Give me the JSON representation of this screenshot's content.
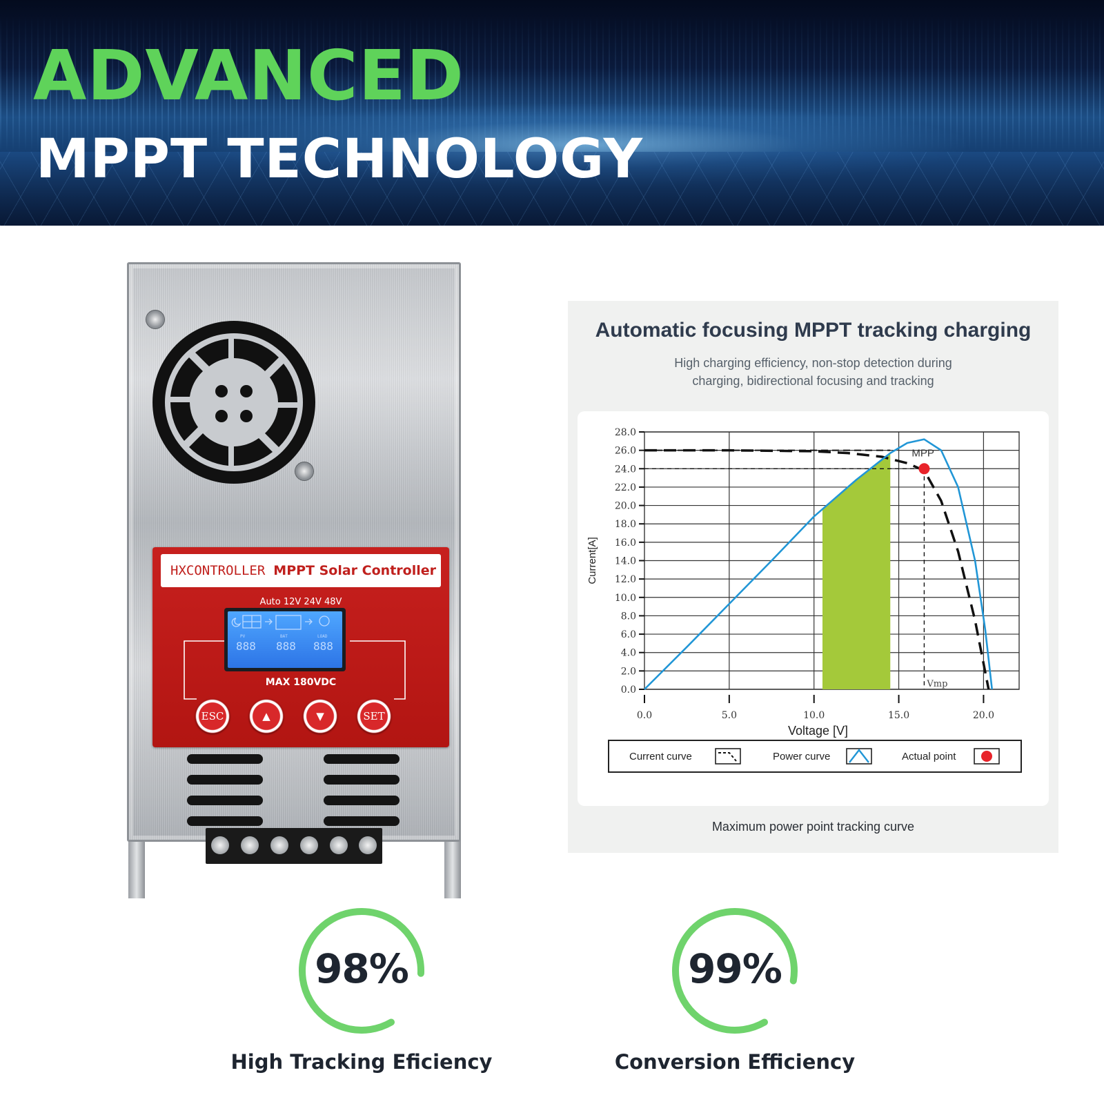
{
  "banner": {
    "title_line1": "ADVANCED",
    "title_line2": "MPPT TECHNOLOGY",
    "title_line1_color": "#5fd35a"
  },
  "device": {
    "brand": "HXCONTROLLER",
    "product": "MPPT Solar Controller",
    "voltage_modes": "Auto 12V 24V 48V",
    "max_input": "MAX 180VDC",
    "buttons": [
      "ESC",
      "▲",
      "▼",
      "SET"
    ],
    "lcd": {
      "pv": "PV",
      "bat": "BAT",
      "load": "LOAD",
      "digits": "888"
    },
    "panel_color": "#c7201e",
    "lcd_color": "#3b8cff"
  },
  "chart_card": {
    "title": "Automatic focusing MPPT tracking charging",
    "subtitle_line1": "High charging efficiency, non-stop detection during",
    "subtitle_line2": "charging, bidirectional focusing and tracking",
    "caption": "Maximum power point tracking curve"
  },
  "chart_data": {
    "type": "line",
    "xlabel": "Voltage [V]",
    "ylabel": "Current[A]",
    "xlim": [
      0,
      20.0
    ],
    "ylim": [
      0,
      28.0
    ],
    "x_ticks": [
      "0.0",
      "5.0",
      "10.0",
      "15.0",
      "20.0"
    ],
    "y_ticks": [
      "0.0",
      "2.0",
      "4.0",
      "6.0",
      "8.0",
      "10.0",
      "12.0",
      "14.0",
      "16.0",
      "18.0",
      "20.0",
      "22.0",
      "24.0",
      "26.0",
      "28.0"
    ],
    "grid": true,
    "series": [
      {
        "name": "Current curve",
        "style": "dashed",
        "color": "#111111",
        "x": [
          0,
          5,
          10,
          12,
          14,
          15.5,
          16.5,
          17.5,
          18.5,
          19.5,
          20.3
        ],
        "y": [
          26.0,
          26.0,
          25.9,
          25.7,
          25.3,
          24.6,
          23.8,
          20.5,
          15.0,
          7.5,
          0.0
        ]
      },
      {
        "name": "Power curve",
        "style": "solid",
        "color": "#2196d6",
        "x": [
          0,
          2.5,
          5,
          7.5,
          10,
          12.5,
          14.5,
          15.5,
          16.5,
          17.5,
          18.5,
          19.5,
          20.1,
          20.5
        ],
        "y": [
          0.0,
          4.6,
          9.3,
          14.0,
          18.8,
          22.8,
          25.7,
          26.8,
          27.2,
          26.0,
          22.0,
          14.0,
          6.5,
          0.0
        ]
      }
    ],
    "highlight_region": {
      "x_start": 10.5,
      "x_end": 14.5,
      "color": "#a4c93a"
    },
    "mpp_point": {
      "label": "MPP",
      "x": 16.5,
      "y": 24.0,
      "color": "#e8232a"
    },
    "guide_lines": [
      {
        "axis": "y",
        "value": 26.0
      },
      {
        "axis": "y",
        "value": 24.0
      },
      {
        "axis": "x",
        "value": 16.5,
        "label": "Vmp"
      }
    ],
    "legend_position": "bottom",
    "legend": [
      "Current curve",
      "Power curve",
      "Actual point"
    ]
  },
  "stats": [
    {
      "value": "98%",
      "fraction": 0.98,
      "label": "High Tracking Eficiency"
    },
    {
      "value": "99%",
      "fraction": 0.99,
      "label": "Conversion Efficiency"
    }
  ],
  "accent_green": "#6fd36c"
}
